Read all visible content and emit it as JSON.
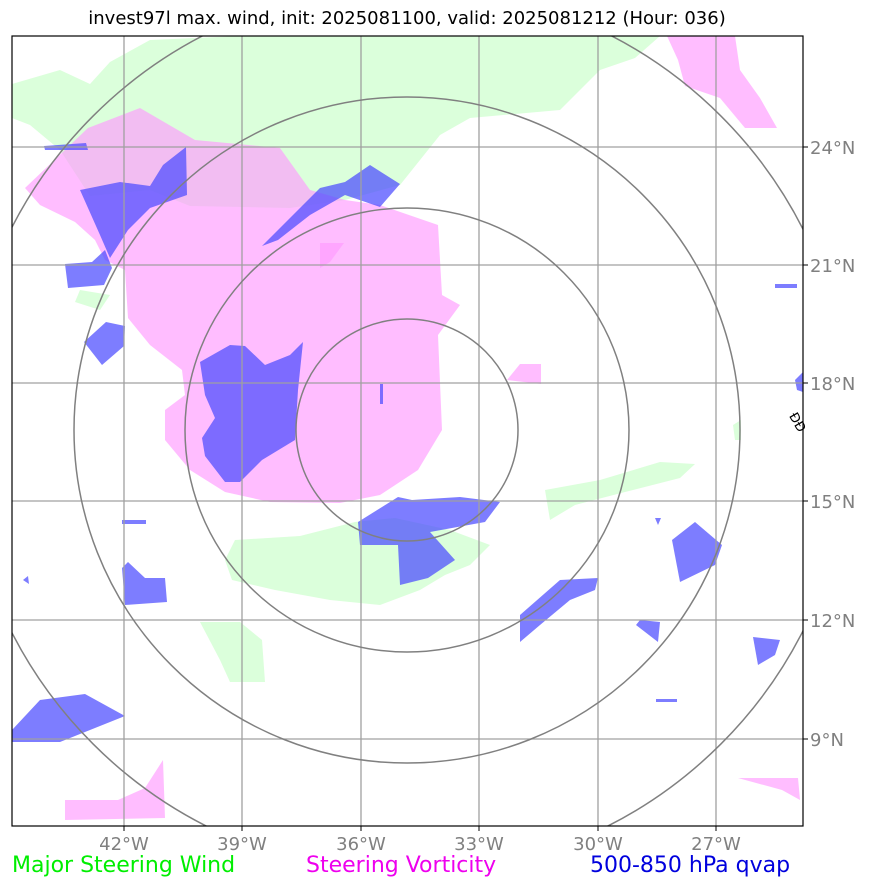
{
  "title": "invest97l max. wind, init: 2025081100, valid: 2025081212 (Hour: 036)",
  "map": {
    "lat_labels": [
      "24°N",
      "21°N",
      "18°N",
      "15°N",
      "12°N",
      "9°N"
    ],
    "lon_labels": [
      "42°W",
      "39°W",
      "36°W",
      "33°W",
      "30°W",
      "27°W"
    ],
    "extent": {
      "lon_min": -44.8,
      "lon_max": -24.9,
      "lat_min": 7.2,
      "lat_max": 27.0
    },
    "range_rings_count": 4,
    "colors": {
      "steering_wind": "#ccffcc",
      "steering_vorticity": "#ff99ff",
      "qvap": "#4b4bff",
      "grid": "#a0a0a0",
      "rings": "#808080"
    }
  },
  "legend": {
    "items": [
      {
        "label": "Major Steering Wind",
        "color": "#00ee00"
      },
      {
        "label": "Steering Vorticity",
        "color": "#ee00ee"
      },
      {
        "label": "500-850 hPa qvap",
        "color": "#0000dd"
      }
    ]
  },
  "overlay_text": "ÐÐ"
}
